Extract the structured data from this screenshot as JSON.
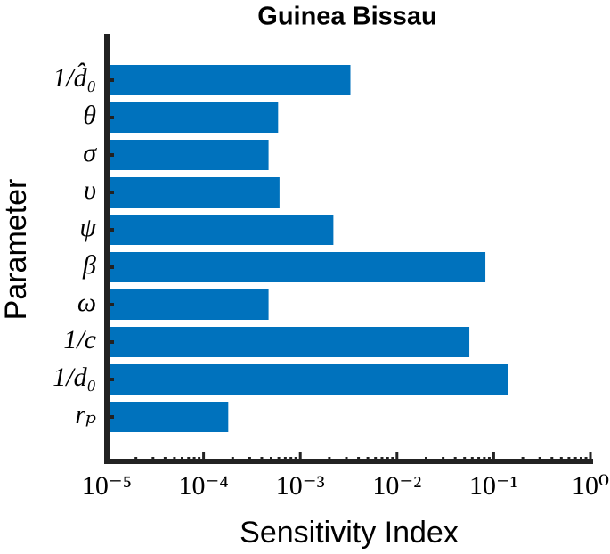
{
  "chart_data": {
    "type": "bar",
    "orientation": "horizontal",
    "title": "Guinea Bissau",
    "x_label": "Sensitivity Index",
    "y_label": "Parameter",
    "categories": [
      "1/d̂₀",
      "θ",
      "σ",
      "υ",
      "ψ",
      "β",
      "ω",
      "1/c",
      "1/d₀",
      "rₚ"
    ],
    "values": [
      0.0033,
      0.00059,
      0.00047,
      0.00061,
      0.0022,
      0.082,
      0.00047,
      0.056,
      0.14,
      0.00018
    ],
    "color": "#0072bd",
    "xscale": "log",
    "xlim": [
      1e-05,
      1
    ],
    "xticks": [
      {
        "value": 1e-05,
        "label": "10⁻⁵"
      },
      {
        "value": 0.0001,
        "label": "10⁻⁴"
      },
      {
        "value": 0.001,
        "label": "10⁻³"
      },
      {
        "value": 0.01,
        "label": "10⁻²"
      },
      {
        "value": 0.1,
        "label": "10⁻¹"
      },
      {
        "value": 1,
        "label": "10⁰"
      }
    ]
  }
}
